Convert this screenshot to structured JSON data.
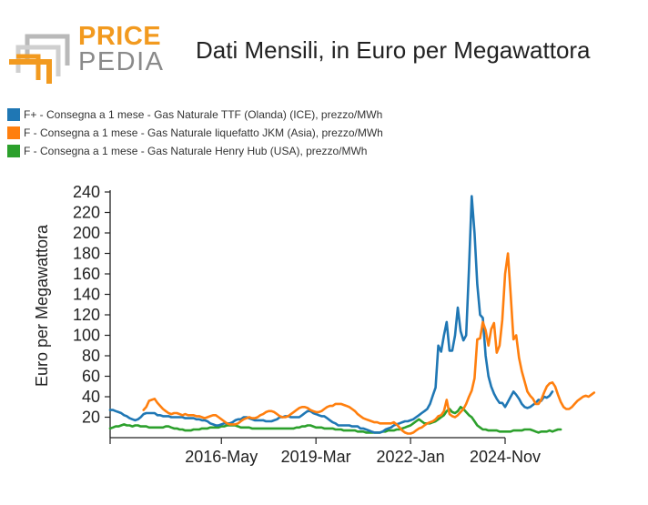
{
  "logo": {
    "line1": "PRICE",
    "line2": "PEDIA"
  },
  "colors": {
    "ttf": "#1f77b4",
    "jkm": "#ff7f0e",
    "henry_hub": "#2ca02c",
    "logo_orange": "#f29a1f",
    "logo_gray": "#9a9a9a"
  },
  "chart_data": {
    "type": "line",
    "title": "Dati Mensili, in Euro per Megawattora",
    "xlabel": "",
    "ylabel": "Euro per Megawattora",
    "ylim": [
      0,
      240
    ],
    "yticks": [
      20,
      40,
      60,
      80,
      100,
      120,
      140,
      160,
      180,
      200,
      220,
      240
    ],
    "xlim": [
      "2013-01",
      "2024-11"
    ],
    "xticks": [
      {
        "date": "2016-05",
        "label": "2016-May"
      },
      {
        "date": "2019-03",
        "label": "2019-Mar"
      },
      {
        "date": "2022-01",
        "label": "2022-Jan"
      },
      {
        "date": "2024-11",
        "label": "2024-Nov"
      }
    ],
    "legend_position": "top-left",
    "grid": false,
    "series": [
      {
        "name": "F+ - Consegna a 1 mese - Gas Naturale TTF (Olanda) (ICE), prezzo/MWh",
        "color": "#1f77b4",
        "start": "2013-01",
        "values": [
          27,
          27,
          26,
          25,
          24,
          22,
          21,
          19,
          18,
          17,
          18,
          20,
          23,
          24,
          24,
          24,
          24,
          22,
          22,
          21,
          21,
          21,
          20,
          20,
          20,
          20,
          20,
          19,
          19,
          19,
          19,
          18,
          18,
          17,
          17,
          16,
          14,
          13,
          12,
          12,
          13,
          14,
          14,
          14,
          15,
          17,
          18,
          18,
          20,
          20,
          19,
          18,
          17,
          17,
          17,
          17,
          16,
          16,
          16,
          17,
          18,
          20,
          20,
          21,
          21,
          20,
          20,
          20,
          20,
          22,
          24,
          26,
          26,
          24,
          23,
          22,
          21,
          21,
          19,
          17,
          15,
          14,
          12,
          12,
          12,
          12,
          12,
          11,
          11,
          11,
          9,
          9,
          8,
          7,
          6,
          5,
          5,
          5,
          6,
          8,
          9,
          10,
          12,
          13,
          14,
          15,
          16,
          16,
          17,
          18,
          20,
          22,
          24,
          26,
          28,
          33,
          41,
          49,
          90,
          84,
          100,
          113,
          85,
          85,
          100,
          127,
          104,
          95,
          100,
          165,
          236,
          200,
          150,
          120,
          117,
          80,
          60,
          50,
          43,
          38,
          34,
          34,
          30,
          35,
          40,
          45,
          42,
          38,
          33,
          30,
          29,
          30,
          32,
          34,
          37,
          36,
          40,
          39,
          41,
          45
        ]
      },
      {
        "name": "F - Consegna a 1 mese - Gas Naturale liquefatto JKM (Asia), prezzo/MWh",
        "color": "#ff7f0e",
        "start": "2014-01",
        "values": [
          27,
          30,
          36,
          37,
          38,
          34,
          31,
          28,
          26,
          24,
          23,
          24,
          24,
          23,
          22,
          23,
          22,
          22,
          22,
          21,
          21,
          20,
          19,
          20,
          21,
          22,
          22,
          20,
          18,
          16,
          14,
          13,
          13,
          13,
          14,
          16,
          18,
          19,
          20,
          19,
          19,
          20,
          22,
          23,
          25,
          26,
          26,
          25,
          23,
          21,
          20,
          20,
          21,
          23,
          25,
          27,
          29,
          30,
          30,
          29,
          27,
          26,
          25,
          25,
          26,
          28,
          30,
          31,
          31,
          33,
          33,
          33,
          32,
          31,
          30,
          28,
          26,
          23,
          21,
          19,
          18,
          17,
          16,
          15,
          15,
          14,
          14,
          14,
          14,
          14,
          15,
          13,
          10,
          7,
          5,
          4,
          4,
          5,
          7,
          9,
          10,
          12,
          14,
          15,
          16,
          18,
          21,
          22,
          26,
          37,
          23,
          21,
          20,
          22,
          25,
          28,
          33,
          40,
          46,
          58,
          96,
          97,
          113,
          105,
          90,
          106,
          112,
          83,
          90,
          115,
          160,
          180,
          140,
          96,
          100,
          78,
          65,
          55,
          45,
          41,
          38,
          33,
          33,
          37,
          44,
          50,
          53,
          54,
          50,
          42,
          35,
          30,
          28,
          28,
          30,
          33,
          36,
          38,
          40,
          41,
          40,
          42,
          44
        ]
      },
      {
        "name": "F - Consegna a 1 mese - Gas Naturale Henry Hub (USA), prezzo/MWh",
        "color": "#2ca02c",
        "start": "2013-01",
        "values": [
          9,
          10,
          11,
          11,
          12,
          13,
          12,
          12,
          11,
          12,
          12,
          11,
          11,
          11,
          10,
          10,
          10,
          10,
          10,
          10,
          11,
          11,
          10,
          9,
          9,
          8,
          8,
          7,
          7,
          7,
          8,
          8,
          8,
          9,
          9,
          9,
          10,
          10,
          10,
          10,
          11,
          11,
          12,
          12,
          12,
          12,
          11,
          10,
          10,
          10,
          10,
          9,
          9,
          9,
          9,
          9,
          9,
          9,
          9,
          9,
          9,
          9,
          9,
          9,
          9,
          9,
          9,
          10,
          10,
          11,
          11,
          12,
          12,
          11,
          10,
          10,
          10,
          9,
          9,
          9,
          9,
          8,
          8,
          8,
          7,
          7,
          7,
          7,
          7,
          6,
          6,
          6,
          5,
          5,
          5,
          5,
          5,
          5,
          6,
          6,
          7,
          7,
          7,
          8,
          8,
          9,
          10,
          11,
          12,
          14,
          16,
          18,
          16,
          14,
          14,
          14,
          15,
          16,
          18,
          20,
          22,
          26,
          28,
          25,
          24,
          26,
          30,
          28,
          25,
          22,
          20,
          16,
          12,
          10,
          8,
          8,
          7,
          7,
          7,
          7,
          6,
          6,
          6,
          6,
          6,
          7,
          7,
          7,
          7,
          8,
          8,
          8,
          7,
          6,
          5,
          6,
          6,
          6,
          7,
          6,
          7,
          8,
          8
        ]
      }
    ]
  }
}
